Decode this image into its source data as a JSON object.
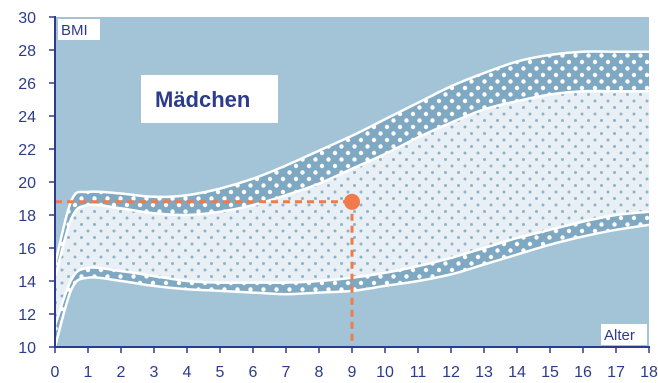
{
  "chart_data": {
    "type": "area",
    "title": "Mädchen",
    "xlabel": "Alter",
    "ylabel": "BMI",
    "xlim": [
      0,
      18
    ],
    "ylim": [
      10,
      30
    ],
    "x_ticks": [
      "0",
      "1",
      "2",
      "3",
      "4",
      "5",
      "6",
      "7",
      "8",
      "9",
      "10",
      "11",
      "12",
      "13",
      "14",
      "15",
      "16",
      "17",
      "18"
    ],
    "y_ticks": [
      "10",
      "12",
      "14",
      "16",
      "18",
      "20",
      "22",
      "24",
      "26",
      "28",
      "30"
    ],
    "grid": false,
    "bands": {
      "x": [
        0,
        0.5,
        1,
        2,
        3,
        4,
        5,
        6,
        7,
        8,
        9,
        10,
        11,
        12,
        13,
        14,
        15,
        16,
        17,
        18
      ],
      "p97": [
        15.0,
        18.9,
        19.4,
        19.3,
        19.1,
        19.2,
        19.6,
        20.2,
        21.0,
        21.9,
        22.8,
        23.8,
        24.8,
        25.8,
        26.6,
        27.3,
        27.7,
        27.9,
        27.9,
        27.9
      ],
      "p90": [
        14.2,
        17.8,
        18.6,
        18.4,
        18.1,
        18.0,
        18.2,
        18.6,
        19.2,
        19.9,
        20.8,
        21.7,
        22.7,
        23.6,
        24.4,
        24.9,
        25.3,
        25.5,
        25.5,
        25.5
      ],
      "p10": [
        11.3,
        14.1,
        14.8,
        14.6,
        14.3,
        14.0,
        13.9,
        13.9,
        13.9,
        14.0,
        14.2,
        14.5,
        14.9,
        15.4,
        16.0,
        16.6,
        17.1,
        17.6,
        18.0,
        18.2
      ],
      "p3": [
        10.0,
        13.5,
        14.2,
        14.0,
        13.7,
        13.5,
        13.4,
        13.3,
        13.2,
        13.3,
        13.4,
        13.7,
        14.0,
        14.4,
        15.0,
        15.6,
        16.2,
        16.7,
        17.1,
        17.4
      ]
    },
    "marker": {
      "x": 9,
      "y": 18.8
    },
    "colors": {
      "background": "#a3c3d6",
      "band_outer": "#7fa8c2",
      "band_inner": "#a8c6d9",
      "dots": "#ffffff",
      "curves": "#ffffff",
      "marker": "#f07a4a",
      "text": "#2d3b8d",
      "axis": "#2d3b8d"
    }
  }
}
